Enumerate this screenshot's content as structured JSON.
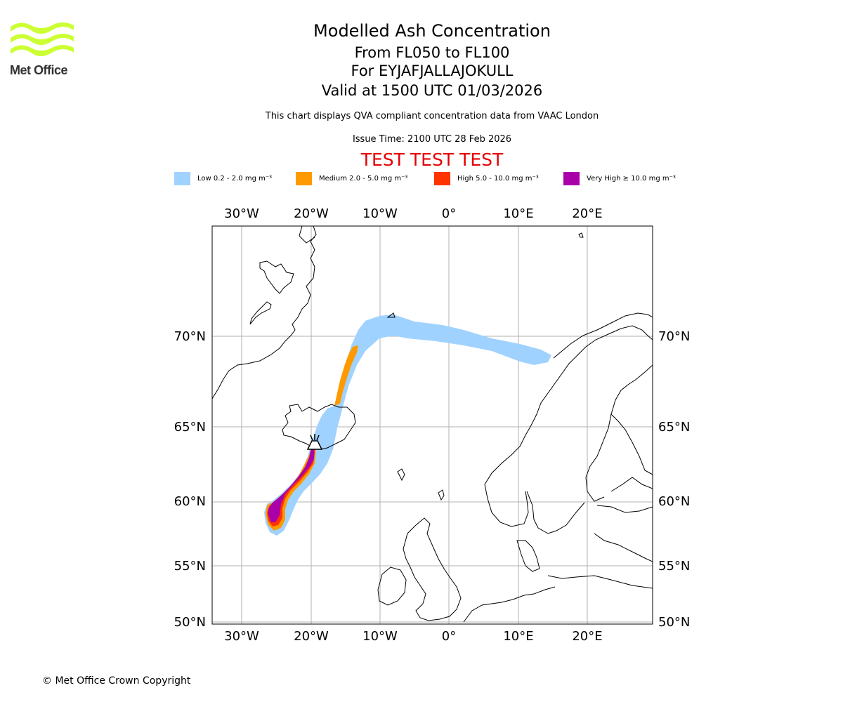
{
  "logo": {
    "text": "Met Office",
    "color": "#ccff33"
  },
  "header": {
    "title": "Modelled Ash Concentration",
    "levels": "From FL050 to FL100",
    "volcano": "For EYJAFJALLAJOKULL",
    "valid": "Valid at 1500 UTC 01/03/2026",
    "description": "This chart displays QVA compliant concentration data from VAAC London",
    "issue_time": "Issue Time: 2100 UTC 28 Feb 2026",
    "test_banner": "TEST TEST TEST"
  },
  "legend": [
    {
      "label": "Low 0.2 - 2.0 mg m⁻³",
      "color": "#a0d2ff"
    },
    {
      "label": "Medium 2.0 - 5.0 mg m⁻³",
      "color": "#ff9900"
    },
    {
      "label": "High 5.0 - 10.0 mg m⁻³",
      "color": "#ff3300"
    },
    {
      "label": "Very High  ≥  10.0 mg m⁻³",
      "color": "#aa00aa"
    }
  ],
  "axes": {
    "lon_labels": [
      "30°W",
      "20°W",
      "10°W",
      "0°",
      "10°E",
      "20°E"
    ],
    "lat_labels": [
      "70°N",
      "65°N",
      "60°N",
      "55°N",
      "50°N"
    ]
  },
  "footer": {
    "copyright": "© Met Office Crown Copyright"
  }
}
